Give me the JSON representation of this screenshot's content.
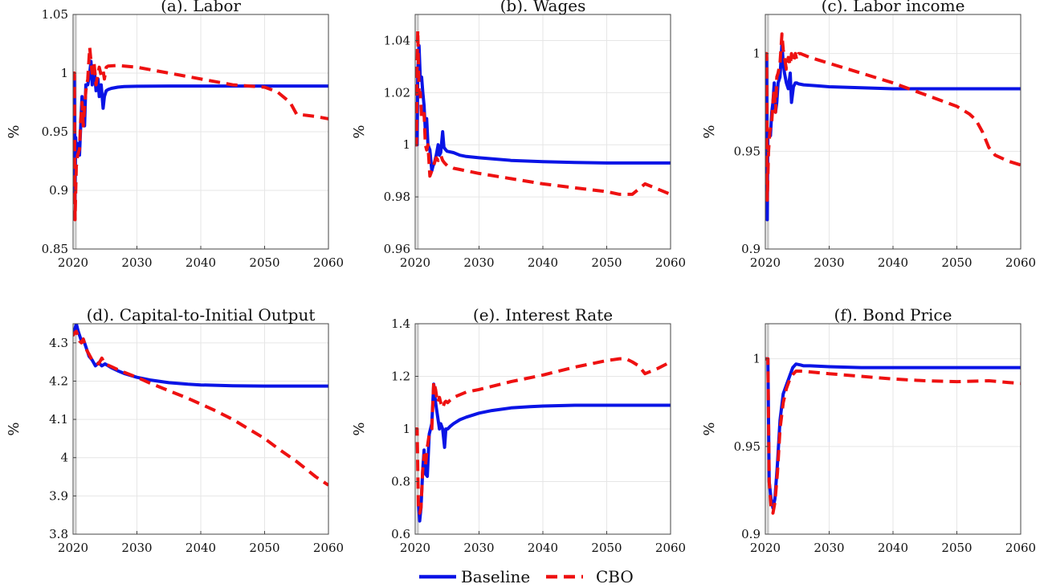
{
  "legend": {
    "baseline_label": "Baseline",
    "cbo_label": "CBO"
  },
  "colors": {
    "baseline": "#0a14e6",
    "cbo": "#ee1111",
    "grid": "#e6e6e6",
    "axis": "#444444",
    "marker": "#c8c8c8"
  },
  "chart_data": [
    {
      "type": "line",
      "title": "(a). Labor",
      "ylabel": "%",
      "xlim": [
        2020,
        2060
      ],
      "ylim": [
        0.85,
        1.05
      ],
      "xticks": [
        2020,
        2030,
        2040,
        2050,
        2060
      ],
      "yticks": [
        0.85,
        0.9,
        0.95,
        1,
        1.05
      ],
      "ytick_labels": [
        "0.85",
        "0.9",
        "0.95",
        "1",
        "1.05"
      ],
      "series": [
        {
          "name": "Baseline",
          "style": "solid",
          "x": [
            2020,
            2020.2,
            2020.3,
            2020.4,
            2020.5,
            2020.7,
            2021,
            2021.2,
            2021.4,
            2021.6,
            2021.8,
            2022,
            2022.3,
            2022.6,
            2022.8,
            2023,
            2023.3,
            2023.6,
            2023.9,
            2024.1,
            2024.4,
            2024.7,
            2024.9,
            2025.2,
            2025.5,
            2026,
            2027,
            2028,
            2030,
            2035,
            2040,
            2050,
            2060
          ],
          "y": [
            1.0,
            0.998,
            0.89,
            0.945,
            0.93,
            0.94,
            0.93,
            0.955,
            0.98,
            0.96,
            0.955,
            0.99,
            0.99,
            1.0,
            1.01,
            0.99,
            1.005,
            0.985,
            0.995,
            0.98,
            0.99,
            0.97,
            0.98,
            0.985,
            0.986,
            0.987,
            0.988,
            0.9885,
            0.9888,
            0.989,
            0.989,
            0.989,
            0.989
          ]
        },
        {
          "name": "CBO",
          "style": "dashed",
          "x": [
            2019.6,
            2020,
            2020.2,
            2020.3,
            2020.5,
            2020.7,
            2021,
            2021.2,
            2021.4,
            2021.6,
            2021.8,
            2022,
            2022.3,
            2022.6,
            2022.8,
            2023,
            2023.3,
            2023.6,
            2023.9,
            2024.1,
            2024.4,
            2024.7,
            2024.9,
            2025.2,
            2025.5,
            2027,
            2030,
            2035,
            2040,
            2045,
            2050,
            2052,
            2054,
            2055,
            2058,
            2060
          ],
          "y": [
            1.0,
            1.0,
            1.0,
            0.875,
            0.92,
            0.93,
            0.935,
            0.96,
            0.975,
            0.955,
            0.97,
            0.985,
            0.995,
            1.022,
            1.01,
            1.0,
            1.008,
            0.99,
            1.0,
            1.005,
            0.998,
            1.002,
            0.995,
            1.005,
            1.006,
            1.0065,
            1.005,
            1.0,
            0.995,
            0.99,
            0.988,
            0.984,
            0.975,
            0.965,
            0.963,
            0.961
          ]
        }
      ]
    },
    {
      "type": "line",
      "title": "(b). Wages",
      "ylabel": "%",
      "xlim": [
        2020,
        2060
      ],
      "ylim": [
        0.96,
        1.05
      ],
      "xticks": [
        2020,
        2030,
        2040,
        2050,
        2060
      ],
      "yticks": [
        0.96,
        0.98,
        1,
        1.02,
        1.04
      ],
      "ytick_labels": [
        "0.96",
        "0.98",
        "1",
        "1.02",
        "1.04"
      ],
      "series": [
        {
          "name": "Baseline",
          "style": "solid",
          "x": [
            2020,
            2020.2,
            2020.3,
            2020.4,
            2020.6,
            2020.8,
            2021,
            2021.2,
            2021.4,
            2021.6,
            2021.8,
            2022,
            2022.3,
            2022.6,
            2022.8,
            2023,
            2023.3,
            2023.6,
            2023.8,
            2024,
            2024.3,
            2024.5,
            2024.8,
            2025,
            2026,
            2027,
            2028,
            2030,
            2035,
            2040,
            2045,
            2050,
            2060
          ],
          "y": [
            1.0,
            1.0,
            1.0,
            1.028,
            1.038,
            1.025,
            1.026,
            1.02,
            1.015,
            1.005,
            1.01,
            1.0,
            0.998,
            0.99,
            0.992,
            0.993,
            0.996,
            1.0,
            0.996,
            0.997,
            1.005,
            0.999,
            0.998,
            0.9975,
            0.997,
            0.996,
            0.9955,
            0.995,
            0.994,
            0.9935,
            0.9932,
            0.993,
            0.993
          ]
        },
        {
          "name": "CBO",
          "style": "dashed",
          "x": [
            2019.6,
            2020,
            2020.2,
            2020.3,
            2020.4,
            2020.6,
            2020.8,
            2021,
            2021.2,
            2021.4,
            2021.6,
            2021.8,
            2022,
            2022.3,
            2022.6,
            2022.8,
            2023,
            2023.3,
            2023.6,
            2023.8,
            2024,
            2024.3,
            2024.6,
            2025,
            2026,
            2027,
            2028,
            2030,
            2035,
            2040,
            2045,
            2050,
            2052,
            2054,
            2055,
            2056,
            2058,
            2060
          ],
          "y": [
            1.0,
            1.0,
            1.0,
            1.03,
            1.044,
            1.02,
            1.02,
            1.01,
            1.01,
            1.012,
            1.0,
            0.998,
            1.0,
            0.988,
            0.99,
            0.991,
            0.993,
            0.995,
            0.994,
            0.995,
            0.996,
            0.994,
            0.993,
            0.992,
            0.991,
            0.9905,
            0.99,
            0.989,
            0.987,
            0.985,
            0.9835,
            0.982,
            0.981,
            0.981,
            0.983,
            0.985,
            0.983,
            0.981
          ]
        }
      ]
    },
    {
      "type": "line",
      "title": "(c). Labor income",
      "ylabel": "%",
      "xlim": [
        2020,
        2060
      ],
      "ylim": [
        0.9,
        1.02
      ],
      "xticks": [
        2020,
        2030,
        2040,
        2050,
        2060
      ],
      "yticks": [
        0.9,
        0.95,
        1
      ],
      "ytick_labels": [
        "0.9",
        "0.95",
        "1"
      ],
      "series": [
        {
          "name": "Baseline",
          "style": "solid",
          "x": [
            2020,
            2020.2,
            2020.3,
            2020.4,
            2020.6,
            2020.8,
            2021,
            2021.2,
            2021.4,
            2021.6,
            2021.8,
            2022,
            2022.3,
            2022.6,
            2022.8,
            2023,
            2023.3,
            2023.6,
            2023.9,
            2024.1,
            2024.4,
            2024.7,
            2024.9,
            2025.2,
            2026,
            2028,
            2030,
            2035,
            2040,
            2050,
            2060
          ],
          "y": [
            1.0,
            0.998,
            0.915,
            0.96,
            0.958,
            0.958,
            0.97,
            0.975,
            0.985,
            0.97,
            0.975,
            0.985,
            0.988,
            1.005,
            0.995,
            0.99,
            0.985,
            0.982,
            0.99,
            0.975,
            0.983,
            0.985,
            0.985,
            0.9845,
            0.984,
            0.9835,
            0.983,
            0.9825,
            0.982,
            0.982,
            0.982
          ]
        },
        {
          "name": "CBO",
          "style": "dashed",
          "x": [
            2019.6,
            2020,
            2020.2,
            2020.3,
            2020.5,
            2020.7,
            2021,
            2021.2,
            2021.4,
            2021.6,
            2021.8,
            2022,
            2022.3,
            2022.6,
            2022.8,
            2023,
            2023.3,
            2023.6,
            2023.9,
            2024.1,
            2024.4,
            2024.7,
            2024.9,
            2025.2,
            2025.5,
            2027,
            2030,
            2035,
            2040,
            2045,
            2050,
            2052,
            2053,
            2054,
            2055,
            2056,
            2058,
            2060
          ],
          "y": [
            1.0,
            1.0,
            1.0,
            0.925,
            0.95,
            0.96,
            0.965,
            0.975,
            0.982,
            0.97,
            0.988,
            0.99,
            0.995,
            1.01,
            1.002,
            0.998,
            0.992,
            0.998,
            0.994,
            1.0,
            0.996,
            1.0,
            0.997,
            1.0,
            1.0,
            0.998,
            0.995,
            0.99,
            0.985,
            0.979,
            0.973,
            0.969,
            0.966,
            0.96,
            0.952,
            0.948,
            0.945,
            0.943
          ]
        }
      ]
    },
    {
      "type": "line",
      "title": "(d). Capital-to-Initial Output",
      "ylabel": "%",
      "xlim": [
        2020,
        2060
      ],
      "ylim": [
        3.8,
        4.35
      ],
      "xticks": [
        2020,
        2030,
        2040,
        2050,
        2060
      ],
      "yticks": [
        3.8,
        3.9,
        4,
        4.1,
        4.2,
        4.3
      ],
      "ytick_labels": [
        "3.8",
        "3.9",
        "4",
        "4.1",
        "4.2",
        "4.3"
      ],
      "series": [
        {
          "name": "Baseline",
          "style": "solid",
          "x": [
            2020,
            2020.2,
            2020.5,
            2020.8,
            2021,
            2021.3,
            2021.6,
            2022,
            2022.5,
            2023,
            2023.5,
            2024,
            2024.5,
            2025,
            2026,
            2027,
            2028,
            2030,
            2032,
            2035,
            2038,
            2040,
            2045,
            2050,
            2055,
            2060
          ],
          "y": [
            4.32,
            4.33,
            4.35,
            4.33,
            4.32,
            4.305,
            4.31,
            4.29,
            4.265,
            4.255,
            4.24,
            4.248,
            4.24,
            4.245,
            4.235,
            4.227,
            4.22,
            4.21,
            4.203,
            4.196,
            4.192,
            4.19,
            4.188,
            4.187,
            4.187,
            4.187
          ]
        },
        {
          "name": "CBO",
          "style": "dashed",
          "x": [
            2019.6,
            2020,
            2020.2,
            2020.5,
            2020.8,
            2021,
            2021.3,
            2021.6,
            2022,
            2022.5,
            2023,
            2023.5,
            2024,
            2024.5,
            2025,
            2026,
            2027,
            2028,
            2030,
            2032,
            2035,
            2038,
            2040,
            2042,
            2045,
            2048,
            2050,
            2052,
            2055,
            2058,
            2060
          ],
          "y": [
            4.32,
            4.32,
            4.325,
            4.33,
            4.315,
            4.305,
            4.3,
            4.31,
            4.285,
            4.27,
            4.255,
            4.25,
            4.245,
            4.26,
            4.245,
            4.238,
            4.23,
            4.223,
            4.21,
            4.195,
            4.175,
            4.155,
            4.14,
            4.125,
            4.1,
            4.07,
            4.05,
            4.025,
            3.99,
            3.95,
            3.928
          ]
        }
      ]
    },
    {
      "type": "line",
      "title": "(e). Interest Rate",
      "ylabel": "%",
      "xlim": [
        2020,
        2060
      ],
      "ylim": [
        0.6,
        1.4
      ],
      "xticks": [
        2020,
        2030,
        2040,
        2050,
        2060
      ],
      "yticks": [
        0.6,
        0.8,
        1,
        1.2,
        1.4
      ],
      "ytick_labels": [
        "0.6",
        "0.8",
        "1",
        "1.2",
        "1.4"
      ],
      "series": [
        {
          "name": "Baseline",
          "style": "solid",
          "x": [
            2020.5,
            2020.7,
            2020.9,
            2021.2,
            2021.4,
            2021.6,
            2021.9,
            2022.2,
            2022.6,
            2022.9,
            2023.2,
            2023.5,
            2023.8,
            2024,
            2024.3,
            2024.6,
            2024.8,
            2025.1,
            2025.5,
            2026,
            2027,
            2028,
            2030,
            2032,
            2035,
            2038,
            2040,
            2045,
            2050,
            2055,
            2060
          ],
          "y": [
            0.72,
            0.65,
            0.7,
            0.85,
            0.92,
            0.83,
            0.82,
            0.98,
            1.02,
            1.17,
            1.1,
            1.05,
            1.0,
            1.02,
            1.0,
            0.93,
            1.0,
            1.0,
            1.01,
            1.02,
            1.035,
            1.045,
            1.06,
            1.07,
            1.08,
            1.085,
            1.087,
            1.09,
            1.09,
            1.09,
            1.09
          ]
        },
        {
          "name": "CBO",
          "style": "dashed",
          "x": [
            2019.6,
            2020,
            2020.3,
            2020.5,
            2020.7,
            2020.9,
            2021.2,
            2021.4,
            2021.6,
            2021.9,
            2022.2,
            2022.6,
            2022.9,
            2023.2,
            2023.5,
            2023.8,
            2024,
            2024.3,
            2024.6,
            2024.8,
            2025.1,
            2025.5,
            2026,
            2028,
            2030,
            2035,
            2040,
            2045,
            2050,
            2052,
            2053,
            2054,
            2055,
            2056,
            2058,
            2060
          ],
          "y": [
            1.0,
            1.0,
            1.0,
            0.7,
            0.68,
            0.7,
            0.85,
            0.9,
            0.86,
            0.93,
            0.98,
            1.0,
            1.18,
            1.15,
            1.1,
            1.12,
            1.1,
            1.08,
            1.1,
            1.105,
            1.1,
            1.11,
            1.12,
            1.14,
            1.15,
            1.18,
            1.205,
            1.235,
            1.26,
            1.267,
            1.267,
            1.255,
            1.24,
            1.21,
            1.23,
            1.255
          ]
        }
      ]
    },
    {
      "type": "line",
      "title": "(f). Bond Price",
      "ylabel": "%",
      "xlim": [
        2020,
        2060
      ],
      "ylim": [
        0.9,
        1.02
      ],
      "xticks": [
        2020,
        2030,
        2040,
        2050,
        2060
      ],
      "yticks": [
        0.9,
        0.95,
        1
      ],
      "ytick_labels": [
        "0.9",
        "0.95",
        "1"
      ],
      "series": [
        {
          "name": "Baseline",
          "style": "solid",
          "x": [
            2020,
            2020.4,
            2020.6,
            2020.9,
            2021.2,
            2021.5,
            2021.9,
            2022.3,
            2022.8,
            2023.3,
            2023.8,
            2024.3,
            2024.8,
            2025.5,
            2026,
            2027,
            2028,
            2030,
            2035,
            2040,
            2045,
            2050,
            2055,
            2060
          ],
          "y": [
            1.0,
            1.0,
            0.93,
            0.92,
            0.915,
            0.92,
            0.94,
            0.965,
            0.98,
            0.985,
            0.99,
            0.995,
            0.997,
            0.9965,
            0.996,
            0.996,
            0.9958,
            0.9955,
            0.995,
            0.995,
            0.995,
            0.995,
            0.995,
            0.995
          ]
        },
        {
          "name": "CBO",
          "style": "dashed",
          "x": [
            2019.6,
            2020,
            2020.4,
            2020.6,
            2020.9,
            2021.2,
            2021.5,
            2021.9,
            2022.3,
            2022.8,
            2023.3,
            2023.8,
            2024.3,
            2024.8,
            2025.5,
            2027,
            2030,
            2035,
            2040,
            2045,
            2050,
            2055,
            2058,
            2060
          ],
          "y": [
            1.0,
            1.0,
            1.0,
            0.93,
            0.915,
            0.912,
            0.918,
            0.935,
            0.96,
            0.975,
            0.983,
            0.988,
            0.991,
            0.993,
            0.993,
            0.9925,
            0.9915,
            0.99,
            0.9885,
            0.9875,
            0.987,
            0.9875,
            0.9865,
            0.986
          ]
        }
      ]
    }
  ]
}
